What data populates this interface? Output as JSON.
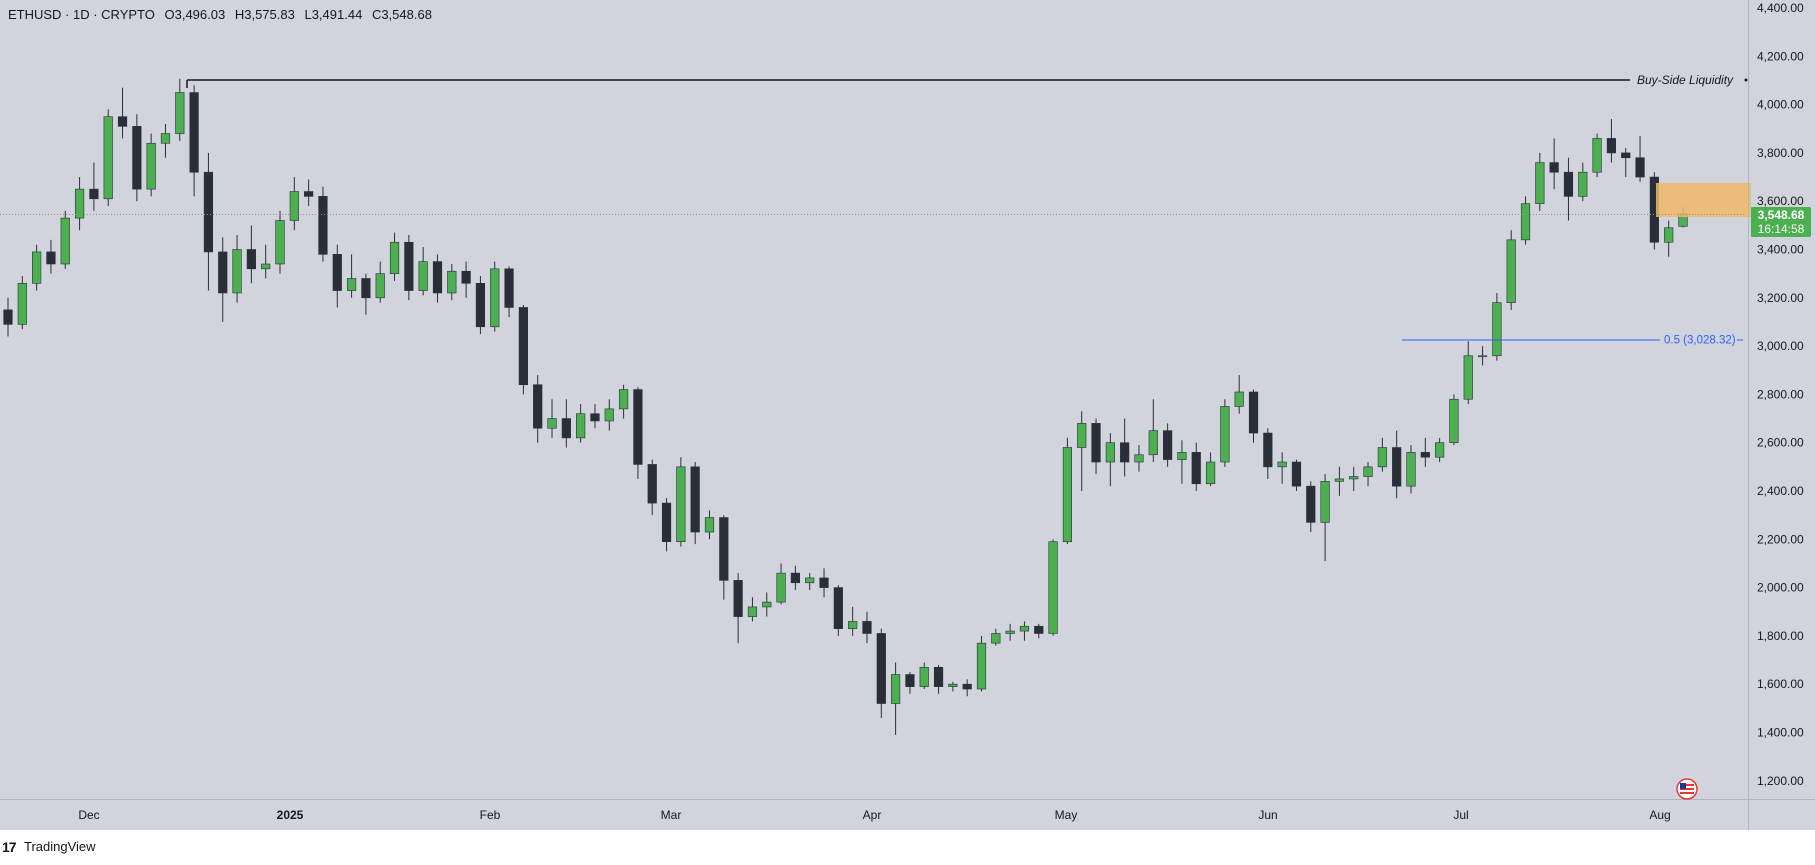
{
  "header": {
    "symbol": "ETHUSD · 1D · CRYPTO",
    "open": "O3,496.03",
    "high": "H3,575.83",
    "low": "L3,491.44",
    "close": "C3,548.68"
  },
  "price_tag": {
    "price": "3,548.68",
    "countdown": "16:14:58"
  },
  "annotations": {
    "buy_side_liquidity": "Buy-Side Liquidity",
    "fib_label": "0.5 (3,028.32)"
  },
  "footer": {
    "brand": "TradingView",
    "logo": "17"
  },
  "colors": {
    "background": "#d1d4dc",
    "up_candle": "#4caf50",
    "down_candle": "#2a2e39",
    "zone": "#f0b868",
    "fib_line": "#2962ff",
    "liquidity_line": "#131722",
    "price_tag": "#4caf50"
  },
  "chart_data": {
    "type": "candlestick",
    "title": "ETHUSD · 1D · CRYPTO",
    "y_ticks": [
      "4,400.00",
      "4,200.00",
      "4,000.00",
      "3,800.00",
      "3,600.00",
      "3,400.00",
      "3,200.00",
      "3,000.00",
      "2,800.00",
      "2,600.00",
      "2,400.00",
      "2,200.00",
      "2,000.00",
      "1,800.00",
      "1,600.00",
      "1,400.00",
      "1,200.00"
    ],
    "y_tick_values": [
      4400,
      4200,
      4000,
      3800,
      3600,
      3400,
      3200,
      3000,
      2800,
      2600,
      2400,
      2200,
      2000,
      1800,
      1600,
      1400,
      1200
    ],
    "x_ticks": [
      "Dec",
      "2025",
      "Feb",
      "Mar",
      "Apr",
      "May",
      "Jun",
      "Jul",
      "Aug"
    ],
    "ylim": [
      1100,
      4430
    ],
    "last_price": 3548.68,
    "buy_side_liquidity_level": 4107,
    "fib_level": 3028.32,
    "supply_zone": [
      3540,
      3680
    ],
    "candles_approx": [
      [
        3150,
        3200,
        3040,
        3090
      ],
      [
        3090,
        3290,
        3070,
        3260
      ],
      [
        3260,
        3420,
        3230,
        3390
      ],
      [
        3390,
        3440,
        3300,
        3340
      ],
      [
        3340,
        3560,
        3320,
        3530
      ],
      [
        3530,
        3700,
        3480,
        3650
      ],
      [
        3650,
        3760,
        3560,
        3610
      ],
      [
        3610,
        3980,
        3580,
        3950
      ],
      [
        3950,
        4070,
        3860,
        3910
      ],
      [
        3910,
        3960,
        3600,
        3650
      ],
      [
        3650,
        3880,
        3620,
        3840
      ],
      [
        3840,
        3920,
        3780,
        3880
      ],
      [
        3880,
        4107,
        3850,
        4050
      ],
      [
        4050,
        4080,
        3620,
        3720
      ],
      [
        3720,
        3800,
        3230,
        3390
      ],
      [
        3390,
        3450,
        3100,
        3220
      ],
      [
        3220,
        3460,
        3180,
        3400
      ],
      [
        3400,
        3500,
        3260,
        3320
      ],
      [
        3320,
        3420,
        3280,
        3340
      ],
      [
        3340,
        3560,
        3300,
        3520
      ],
      [
        3520,
        3700,
        3480,
        3640
      ],
      [
        3640,
        3690,
        3580,
        3620
      ],
      [
        3620,
        3660,
        3350,
        3380
      ],
      [
        3380,
        3420,
        3160,
        3230
      ],
      [
        3230,
        3380,
        3200,
        3280
      ],
      [
        3280,
        3300,
        3130,
        3200
      ],
      [
        3200,
        3350,
        3180,
        3300
      ],
      [
        3300,
        3470,
        3270,
        3430
      ],
      [
        3430,
        3460,
        3190,
        3230
      ],
      [
        3230,
        3410,
        3210,
        3350
      ],
      [
        3350,
        3380,
        3180,
        3220
      ],
      [
        3220,
        3340,
        3190,
        3310
      ],
      [
        3310,
        3350,
        3200,
        3260
      ],
      [
        3260,
        3290,
        3050,
        3080
      ],
      [
        3080,
        3350,
        3060,
        3320
      ],
      [
        3320,
        3330,
        3120,
        3160
      ],
      [
        3160,
        3170,
        2800,
        2840
      ],
      [
        2840,
        2880,
        2600,
        2660
      ],
      [
        2660,
        2780,
        2620,
        2700
      ],
      [
        2700,
        2780,
        2580,
        2620
      ],
      [
        2620,
        2760,
        2600,
        2720
      ],
      [
        2720,
        2760,
        2660,
        2690
      ],
      [
        2690,
        2780,
        2650,
        2740
      ],
      [
        2740,
        2840,
        2700,
        2820
      ],
      [
        2820,
        2830,
        2450,
        2510
      ],
      [
        2510,
        2530,
        2300,
        2350
      ],
      [
        2350,
        2370,
        2150,
        2190
      ],
      [
        2190,
        2540,
        2170,
        2500
      ],
      [
        2500,
        2520,
        2180,
        2230
      ],
      [
        2230,
        2320,
        2200,
        2290
      ],
      [
        2290,
        2300,
        1950,
        2030
      ],
      [
        2030,
        2060,
        1770,
        1880
      ],
      [
        1880,
        1960,
        1860,
        1920
      ],
      [
        1920,
        1980,
        1880,
        1940
      ],
      [
        1940,
        2100,
        1930,
        2060
      ],
      [
        2060,
        2090,
        1990,
        2020
      ],
      [
        2020,
        2060,
        1990,
        2040
      ],
      [
        2040,
        2080,
        1960,
        2000
      ],
      [
        2000,
        2010,
        1800,
        1830
      ],
      [
        1830,
        1920,
        1800,
        1860
      ],
      [
        1860,
        1900,
        1770,
        1810
      ],
      [
        1810,
        1830,
        1460,
        1520
      ],
      [
        1520,
        1690,
        1390,
        1640
      ],
      [
        1640,
        1650,
        1560,
        1590
      ],
      [
        1590,
        1690,
        1580,
        1670
      ],
      [
        1670,
        1680,
        1560,
        1590
      ],
      [
        1590,
        1610,
        1570,
        1600
      ],
      [
        1600,
        1620,
        1550,
        1580
      ],
      [
        1580,
        1800,
        1570,
        1770
      ],
      [
        1770,
        1830,
        1760,
        1810
      ],
      [
        1810,
        1850,
        1780,
        1820
      ],
      [
        1820,
        1860,
        1780,
        1840
      ],
      [
        1840,
        1850,
        1790,
        1810
      ],
      [
        1810,
        2200,
        1800,
        2190
      ],
      [
        2190,
        2620,
        2180,
        2580
      ],
      [
        2580,
        2730,
        2400,
        2680
      ],
      [
        2680,
        2700,
        2470,
        2520
      ],
      [
        2520,
        2640,
        2420,
        2600
      ],
      [
        2600,
        2700,
        2460,
        2520
      ],
      [
        2520,
        2590,
        2480,
        2550
      ],
      [
        2550,
        2780,
        2520,
        2650
      ],
      [
        2650,
        2680,
        2500,
        2530
      ],
      [
        2530,
        2610,
        2430,
        2560
      ],
      [
        2560,
        2600,
        2400,
        2430
      ],
      [
        2430,
        2560,
        2420,
        2520
      ],
      [
        2520,
        2780,
        2500,
        2750
      ],
      [
        2750,
        2880,
        2720,
        2810
      ],
      [
        2810,
        2820,
        2600,
        2640
      ],
      [
        2640,
        2660,
        2450,
        2500
      ],
      [
        2500,
        2560,
        2430,
        2520
      ],
      [
        2520,
        2530,
        2400,
        2420
      ],
      [
        2420,
        2440,
        2230,
        2270
      ],
      [
        2270,
        2470,
        2110,
        2440
      ],
      [
        2440,
        2500,
        2380,
        2450
      ],
      [
        2450,
        2500,
        2400,
        2460
      ],
      [
        2460,
        2520,
        2420,
        2500
      ],
      [
        2500,
        2620,
        2480,
        2580
      ],
      [
        2580,
        2650,
        2370,
        2420
      ],
      [
        2420,
        2590,
        2390,
        2560
      ],
      [
        2560,
        2620,
        2500,
        2540
      ],
      [
        2540,
        2620,
        2520,
        2600
      ],
      [
        2600,
        2800,
        2590,
        2780
      ],
      [
        2780,
        3020,
        2760,
        2960
      ],
      [
        2960,
        3000,
        2920,
        2960
      ],
      [
        2960,
        3220,
        2940,
        3180
      ],
      [
        3180,
        3480,
        3150,
        3440
      ],
      [
        3440,
        3620,
        3420,
        3590
      ],
      [
        3590,
        3800,
        3560,
        3760
      ],
      [
        3760,
        3860,
        3650,
        3720
      ],
      [
        3720,
        3780,
        3520,
        3620
      ],
      [
        3620,
        3760,
        3600,
        3720
      ],
      [
        3720,
        3880,
        3700,
        3860
      ],
      [
        3860,
        3940,
        3760,
        3800
      ],
      [
        3800,
        3820,
        3700,
        3780
      ],
      [
        3780,
        3870,
        3680,
        3700
      ],
      [
        3700,
        3720,
        3400,
        3430
      ],
      [
        3430,
        3520,
        3370,
        3490
      ],
      [
        3496.03,
        3575.83,
        3491.44,
        3548.68
      ]
    ]
  }
}
